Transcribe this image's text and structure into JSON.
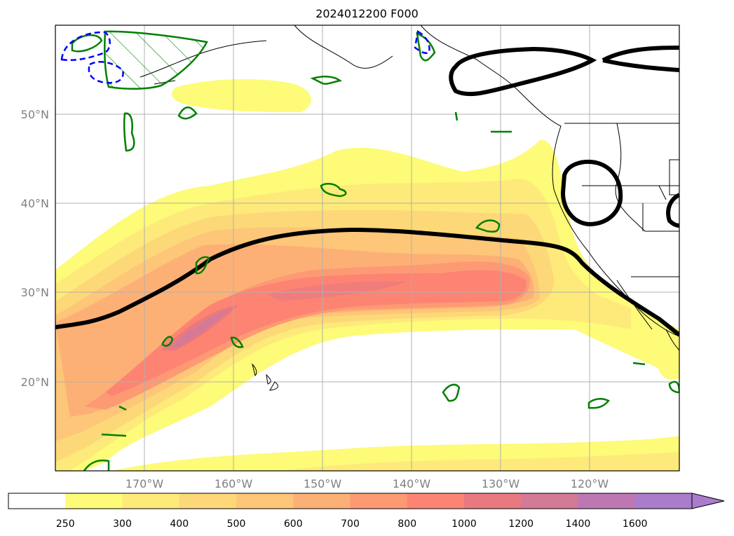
{
  "title": "2024012200 F000",
  "map": {
    "lon_range": [
      -180,
      -110
    ],
    "lat_range": [
      10,
      60
    ],
    "gridlines": true,
    "lon_ticks": [
      "170°W",
      "160°W",
      "150°W",
      "140°W",
      "130°W",
      "120°W"
    ],
    "lat_ticks": [
      "50°N",
      "40°N",
      "30°N",
      "20°N"
    ],
    "contour_colors": {
      "black_line": "#000000",
      "green_contour": "#008000",
      "blue_dashed": "#0000ff"
    }
  },
  "colorbar": {
    "labels": [
      "250",
      "300",
      "400",
      "500",
      "600",
      "700",
      "800",
      "1000",
      "1200",
      "1400",
      "1600"
    ],
    "colors": [
      "#ffffff",
      "#fdfb78",
      "#fdea7a",
      "#fdd878",
      "#fdc678",
      "#fdb076",
      "#fd9a74",
      "#fd8472",
      "#e97980",
      "#d47a96",
      "#bd78b4",
      "#a97ccc"
    ],
    "extend": "max"
  }
}
